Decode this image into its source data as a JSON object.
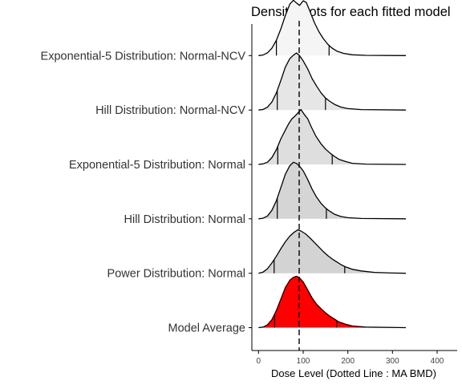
{
  "chart_data": {
    "type": "ridgeline-density",
    "title": "Density plots for each fitted model",
    "xlabel": "Dose Level (Dotted Line : MA BMD)",
    "ylabel": "",
    "xlim": [
      -15,
      445
    ],
    "xticks": [
      0,
      100,
      200,
      300,
      400
    ],
    "grid": false,
    "legend": "none",
    "reference_line": {
      "x": 91,
      "style": "dashed",
      "label": "MA BMD"
    },
    "series": [
      {
        "name": "Exponential-5 Distribution: Normal-NCV",
        "fill": "#f5f5f5",
        "quantile_marks": [
          40,
          158
        ],
        "density": [
          [
            0,
            0
          ],
          [
            10,
            0.01
          ],
          [
            20,
            0.05
          ],
          [
            30,
            0.13
          ],
          [
            40,
            0.27
          ],
          [
            50,
            0.47
          ],
          [
            60,
            0.7
          ],
          [
            70,
            0.9
          ],
          [
            78,
            0.97
          ],
          [
            85,
            0.92
          ],
          [
            92,
            0.88
          ],
          [
            100,
            0.96
          ],
          [
            107,
            0.93
          ],
          [
            115,
            0.78
          ],
          [
            125,
            0.58
          ],
          [
            135,
            0.42
          ],
          [
            145,
            0.3
          ],
          [
            155,
            0.2
          ],
          [
            165,
            0.13
          ],
          [
            175,
            0.08
          ],
          [
            190,
            0.04
          ],
          [
            210,
            0.015
          ],
          [
            240,
            0.005
          ],
          [
            330,
            0
          ]
        ]
      },
      {
        "name": "Hill Distribution: Normal-NCV",
        "fill": "#e6e6e6",
        "quantile_marks": [
          42,
          150
        ],
        "density": [
          [
            0,
            0
          ],
          [
            10,
            0.01
          ],
          [
            20,
            0.05
          ],
          [
            30,
            0.14
          ],
          [
            40,
            0.3
          ],
          [
            50,
            0.52
          ],
          [
            60,
            0.75
          ],
          [
            70,
            0.9
          ],
          [
            78,
            0.96
          ],
          [
            85,
            1
          ],
          [
            92,
            0.95
          ],
          [
            100,
            0.86
          ],
          [
            110,
            0.72
          ],
          [
            120,
            0.55
          ],
          [
            130,
            0.42
          ],
          [
            140,
            0.3
          ],
          [
            150,
            0.21
          ],
          [
            160,
            0.15
          ],
          [
            170,
            0.1
          ],
          [
            185,
            0.05
          ],
          [
            200,
            0.025
          ],
          [
            230,
            0.008
          ],
          [
            330,
            0
          ]
        ]
      },
      {
        "name": "Exponential-5 Distribution: Normal",
        "fill": "#dedede",
        "quantile_marks": [
          43,
          165
        ],
        "density": [
          [
            0,
            0
          ],
          [
            10,
            0.01
          ],
          [
            20,
            0.04
          ],
          [
            30,
            0.12
          ],
          [
            40,
            0.26
          ],
          [
            50,
            0.45
          ],
          [
            60,
            0.6
          ],
          [
            68,
            0.72
          ],
          [
            75,
            0.8
          ],
          [
            82,
            0.85
          ],
          [
            88,
            0.9
          ],
          [
            95,
            0.96
          ],
          [
            102,
            0.88
          ],
          [
            110,
            0.8
          ],
          [
            118,
            0.66
          ],
          [
            128,
            0.5
          ],
          [
            140,
            0.36
          ],
          [
            150,
            0.27
          ],
          [
            160,
            0.2
          ],
          [
            170,
            0.14
          ],
          [
            180,
            0.09
          ],
          [
            195,
            0.05
          ],
          [
            210,
            0.02
          ],
          [
            240,
            0.006
          ],
          [
            330,
            0
          ]
        ]
      },
      {
        "name": "Hill Distribution: Normal",
        "fill": "#d5d5d5",
        "quantile_marks": [
          42,
          152
        ],
        "density": [
          [
            0,
            0
          ],
          [
            10,
            0.01
          ],
          [
            20,
            0.05
          ],
          [
            30,
            0.15
          ],
          [
            40,
            0.32
          ],
          [
            50,
            0.55
          ],
          [
            60,
            0.78
          ],
          [
            70,
            0.93
          ],
          [
            78,
            0.99
          ],
          [
            85,
            0.97
          ],
          [
            92,
            0.92
          ],
          [
            100,
            0.84
          ],
          [
            110,
            0.69
          ],
          [
            120,
            0.52
          ],
          [
            130,
            0.38
          ],
          [
            140,
            0.27
          ],
          [
            150,
            0.19
          ],
          [
            160,
            0.13
          ],
          [
            170,
            0.08
          ],
          [
            185,
            0.04
          ],
          [
            200,
            0.02
          ],
          [
            230,
            0.006
          ],
          [
            330,
            0
          ]
        ]
      },
      {
        "name": "Power Distribution: Normal",
        "fill": "#d3d3d3",
        "quantile_marks": [
          35,
          193
        ],
        "density": [
          [
            0,
            0
          ],
          [
            10,
            0.02
          ],
          [
            20,
            0.08
          ],
          [
            30,
            0.18
          ],
          [
            40,
            0.3
          ],
          [
            50,
            0.43
          ],
          [
            60,
            0.55
          ],
          [
            70,
            0.65
          ],
          [
            80,
            0.72
          ],
          [
            88,
            0.76
          ],
          [
            95,
            0.74
          ],
          [
            105,
            0.69
          ],
          [
            115,
            0.62
          ],
          [
            125,
            0.54
          ],
          [
            135,
            0.46
          ],
          [
            145,
            0.38
          ],
          [
            155,
            0.31
          ],
          [
            165,
            0.25
          ],
          [
            175,
            0.2
          ],
          [
            185,
            0.15
          ],
          [
            195,
            0.11
          ],
          [
            210,
            0.07
          ],
          [
            230,
            0.04
          ],
          [
            260,
            0.015
          ],
          [
            300,
            0.004
          ],
          [
            330,
            0
          ]
        ]
      },
      {
        "name": "Model Average",
        "fill": "#ff0000",
        "quantile_marks": [
          36,
          175
        ],
        "density": [
          [
            0,
            0
          ],
          [
            10,
            0.01
          ],
          [
            20,
            0.05
          ],
          [
            30,
            0.14
          ],
          [
            40,
            0.3
          ],
          [
            50,
            0.5
          ],
          [
            60,
            0.7
          ],
          [
            70,
            0.83
          ],
          [
            78,
            0.88
          ],
          [
            85,
            0.9
          ],
          [
            92,
            0.87
          ],
          [
            100,
            0.8
          ],
          [
            110,
            0.66
          ],
          [
            120,
            0.52
          ],
          [
            130,
            0.41
          ],
          [
            140,
            0.33
          ],
          [
            150,
            0.26
          ],
          [
            160,
            0.2
          ],
          [
            170,
            0.15
          ],
          [
            180,
            0.1
          ],
          [
            195,
            0.06
          ],
          [
            210,
            0.03
          ],
          [
            240,
            0.01
          ],
          [
            330,
            0
          ]
        ]
      }
    ]
  }
}
